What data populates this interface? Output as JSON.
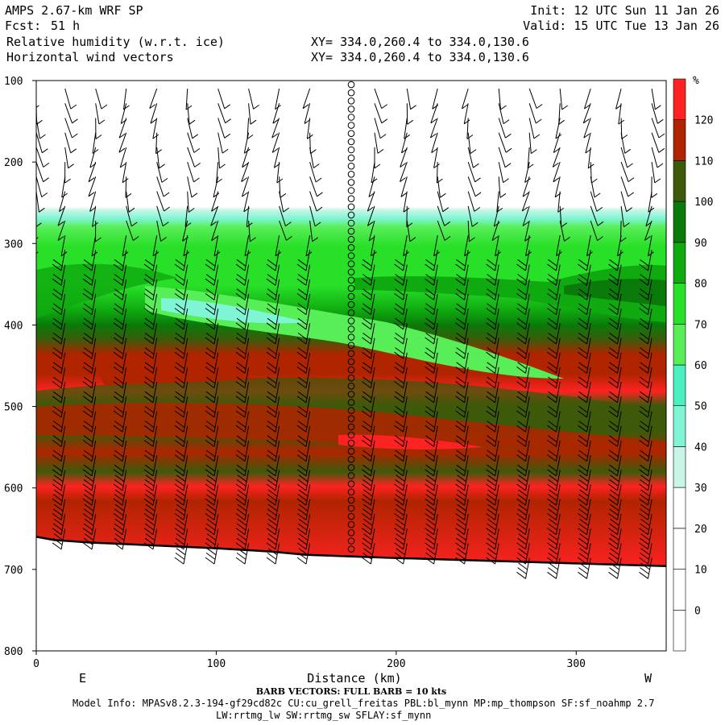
{
  "header": {
    "model": "AMPS 2.67-km WRF SP",
    "fcst_label": "Fcst:",
    "fcst_value": "51 h",
    "variable": "Relative humidity (w.r.t. ice)",
    "vectors": "Horizontal wind vectors",
    "xy_line1": "XY= 334.0,260.4 to 334.0,130.6",
    "xy_line2": "XY= 334.0,260.4 to 334.0,130.6",
    "init": "Init: 12 UTC Sun 11 Jan 26",
    "valid": "Valid: 15 UTC Tue 13 Jan 26"
  },
  "footer": {
    "xlabel": "Distance (km)",
    "left_dir": "E",
    "right_dir": "W",
    "barb_note": "BARB VECTORS:  FULL BARB = 10 kts",
    "model_info": "Model Info: MPASv8.2.3-194-gf29cd82c CU:cu_grell_freitas PBL:bl_mynn MP:mp_thompson SF:sf_noahmp 2.7",
    "model_info2": "LW:rrtmg_lw SW:rrtmg_sw SFLAY:sf_mynn"
  },
  "colorbar": {
    "unit": "%",
    "levels": [
      0,
      10,
      20,
      30,
      40,
      50,
      60,
      70,
      80,
      90,
      100,
      110,
      120
    ],
    "colors": [
      "#ffffff",
      "#ffffff",
      "#ffffff",
      "#ffffff",
      "#c8f5e6",
      "#7ff5d6",
      "#4cf0c0",
      "#58ee58",
      "#28e028",
      "#0faa0f",
      "#0a7a0a",
      "#3d5a0a",
      "#b02400",
      "#ff2222"
    ]
  },
  "chart_data": {
    "type": "cross-section",
    "title": "Relative humidity (w.r.t. ice)",
    "xlabel": "Distance (km)",
    "ylabel": "",
    "xlim": [
      0,
      350
    ],
    "ylim": [
      800,
      100
    ],
    "xticks": [
      0,
      100,
      200,
      300
    ],
    "yticks": [
      100,
      200,
      300,
      400,
      500,
      600,
      700,
      800
    ],
    "terrain_surface_hpa": {
      "x_km": [
        0,
        10,
        30,
        60,
        100,
        130,
        150,
        175,
        200,
        230,
        260,
        290,
        320,
        350
      ],
      "p": [
        660,
        664,
        667,
        670,
        674,
        678,
        682,
        684,
        686,
        688,
        690,
        692,
        694,
        696
      ]
    },
    "rh_bands_top_to_bottom": [
      {
        "p_range": [
          100,
          285
        ],
        "rh": "<30"
      },
      {
        "p_range": [
          285,
          300
        ],
        "rh": "30-50"
      },
      {
        "p_range": [
          300,
          450
        ],
        "rh": "70-90"
      },
      {
        "p_range": [
          450,
          530
        ],
        "rh": "100-120"
      },
      {
        "p_range": [
          530,
          570
        ],
        "rh": ">110"
      },
      {
        "p_range": [
          570,
          620
        ],
        "rh": "100-110"
      },
      {
        "p_range": [
          620,
          695
        ],
        "rh": "100-130"
      }
    ],
    "wind_barb_columns_km": [
      0,
      16,
      33,
      50,
      67,
      84,
      101,
      118,
      135,
      152,
      175,
      188,
      206,
      223,
      240,
      257,
      274,
      291,
      308,
      325,
      342
    ],
    "calm_column_km": 175
  }
}
